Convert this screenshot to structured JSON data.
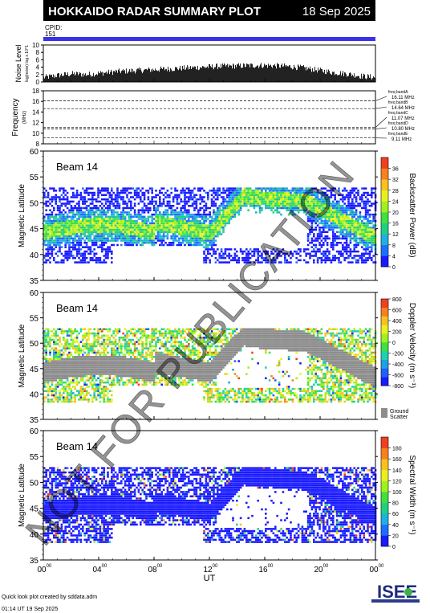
{
  "header": {
    "title": "HOKKAIDO RADAR SUMMARY PLOT",
    "date": "18 Sep 2025",
    "cpid_label": "CPID:",
    "cpid_value": "151"
  },
  "watermark": "NOT FOR PUBLICATION",
  "footer": {
    "credit": "Quick look plot created by sddata.adm",
    "timestamp": "01:14 UT 19 Sep 2025",
    "logo_text": "ISEE"
  },
  "colors": {
    "cpid_bar": "#3a32e8",
    "ground_scatter": "#8c8c8c"
  },
  "chart_data": [
    {
      "type": "bar",
      "id": "noise",
      "ylabel": "Noise Level",
      "ylabel_sub": "log(noise) log x 10^1",
      "ylim": [
        0,
        10
      ],
      "yticks": [
        "0",
        "2",
        "4",
        "6",
        "8",
        "10"
      ],
      "profile": [
        1.2,
        1.8,
        2.2,
        2.0,
        2.4,
        2.8,
        3.0,
        3.2,
        3.4,
        3.6,
        3.8,
        4.0,
        4.2,
        4.3,
        4.4,
        4.5,
        4.4,
        4.2,
        3.8,
        3.2,
        2.6,
        2.2,
        1.6,
        1.2
      ]
    },
    {
      "type": "line",
      "id": "frequency",
      "ylabel": "Frequency",
      "ylabel_sub": "(MHz)",
      "ylim": [
        8,
        18
      ],
      "yticks": [
        "8",
        "10",
        "12",
        "14",
        "16",
        "18"
      ],
      "bands": [
        {
          "name": "freq bandA",
          "freq": "16.11 MHz",
          "value": 16.11
        },
        {
          "name": "freq bandB",
          "freq": "14.64 MHz",
          "value": 14.64
        },
        {
          "name": "freq bandC",
          "freq": "11.07 MHz",
          "value": 11.07
        },
        {
          "name": "freq bandD",
          "freq": "10.80 MHz",
          "value": 10.8
        },
        {
          "name": "freq bandE",
          "freq": "9.11 MHz",
          "value": 9.11
        }
      ]
    },
    {
      "type": "heatmap",
      "id": "power",
      "beam": "Beam 14",
      "ylabel": "Magnetic Latitude",
      "ylim": [
        35,
        60
      ],
      "yticks": [
        "35",
        "40",
        "45",
        "50",
        "55",
        "60"
      ],
      "colorbar_label": "Backscatter Power (dB)",
      "colorbar_ticks": [
        "0",
        "4",
        "8",
        "12",
        "16",
        "20",
        "24",
        "28",
        "32",
        "36"
      ],
      "colorbar_range": [
        0,
        36
      ],
      "colorbar": [
        "#1a1aff",
        "#1f6fff",
        "#20b0e0",
        "#20d080",
        "#40e040",
        "#a0f020",
        "#e8f020",
        "#f8c020",
        "#f88020",
        "#f04020"
      ]
    },
    {
      "type": "heatmap",
      "id": "velocity",
      "beam": "Beam 14",
      "ylabel": "Magnetic Latitude",
      "ylim": [
        35,
        60
      ],
      "yticks": [
        "35",
        "40",
        "45",
        "50",
        "55",
        "60"
      ],
      "colorbar_label": "Doppler Velocity (m s⁻¹)",
      "colorbar_ticks": [
        "800",
        "600",
        "400",
        "200",
        "0",
        "-200",
        "-400",
        "-600",
        "-800"
      ],
      "colorbar_range": [
        -800,
        800
      ],
      "colorbar": [
        "#1a1aff",
        "#2060ff",
        "#20a0e0",
        "#20d0b0",
        "#40e040",
        "#a0f020",
        "#e8f020",
        "#f8c020",
        "#f88020",
        "#f04020"
      ],
      "ground_scatter_label": [
        "Ground",
        "Scatter"
      ]
    },
    {
      "type": "heatmap",
      "id": "width",
      "beam": "Beam 14",
      "ylabel": "Magnetic Latitude",
      "ylim": [
        35,
        60
      ],
      "yticks": [
        "35",
        "40",
        "45",
        "50",
        "55",
        "60"
      ],
      "colorbar_label": "Spectral Width (m s⁻¹)",
      "colorbar_ticks": [
        "0",
        "20",
        "40",
        "60",
        "80",
        "100",
        "120",
        "140",
        "160",
        "180"
      ],
      "colorbar_range": [
        0,
        180
      ],
      "colorbar": [
        "#1a1aff",
        "#1f6fff",
        "#20b0e0",
        "#20d080",
        "#40e040",
        "#a0f020",
        "#e8f020",
        "#f8c020",
        "#f88020",
        "#f04020"
      ]
    }
  ],
  "xaxis": {
    "label": "UT",
    "ticks": [
      {
        "h": "00",
        "m": "00"
      },
      {
        "h": "04",
        "m": "00"
      },
      {
        "h": "08",
        "m": "00"
      },
      {
        "h": "12",
        "m": "00"
      },
      {
        "h": "16",
        "m": "00"
      },
      {
        "h": "20",
        "m": "00"
      },
      {
        "h": "00",
        "m": "00"
      }
    ]
  }
}
